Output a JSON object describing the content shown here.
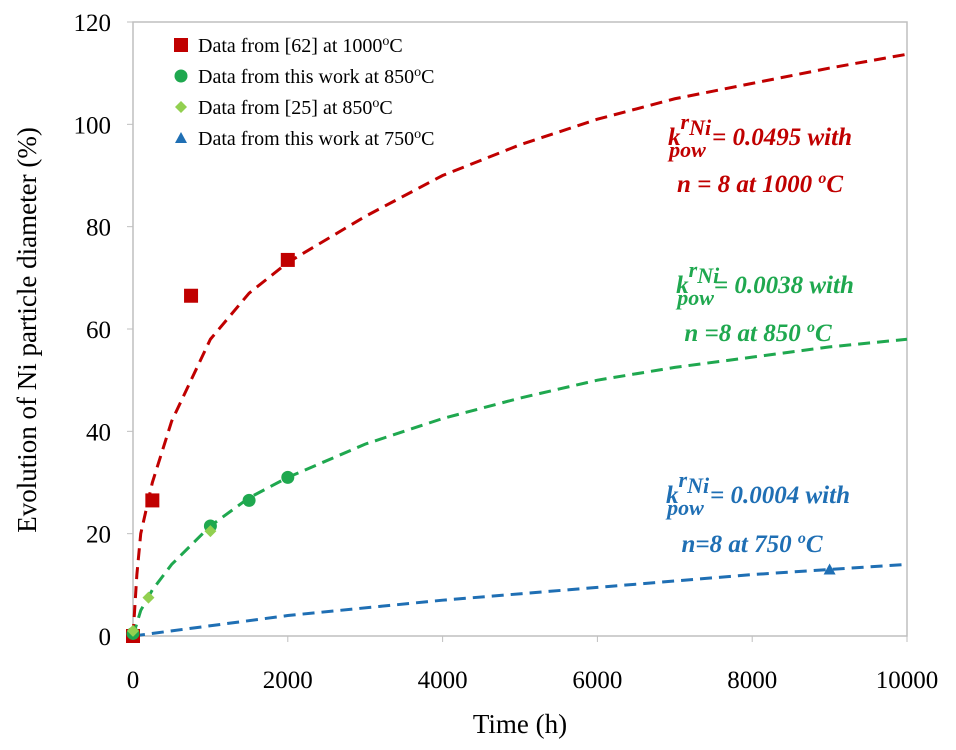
{
  "chart_data": {
    "type": "scatter",
    "x_label": "Time (h)",
    "y_label": "Evolution of Ni particle diameter  (%)",
    "xlim": [
      0,
      10000
    ],
    "xticks": [
      0,
      2000,
      4000,
      6000,
      8000,
      10000
    ],
    "ylim": [
      0,
      120
    ],
    "yticks": [
      0,
      20,
      40,
      60,
      80,
      100,
      120
    ],
    "grid": false,
    "legend": "upper left",
    "series": [
      {
        "name": "Data from [62] at 1000",
        "name_sup": "o",
        "name_end": "C",
        "marker": "square",
        "color": "#c00000",
        "x": [
          0,
          250,
          750,
          2000
        ],
        "values": [
          0,
          26.5,
          66.5,
          73.5
        ]
      },
      {
        "name": "Data from this work at 850",
        "name_sup": "o",
        "name_end": "C",
        "marker": "circle",
        "color": "#1fa84f",
        "x": [
          0,
          1000,
          1500,
          2000
        ],
        "values": [
          0.5,
          21.5,
          26.5,
          31
        ]
      },
      {
        "name": "Data from [25] at 850",
        "name_sup": "o",
        "name_end": "C",
        "marker": "diamond",
        "color": "#92d050",
        "x": [
          0,
          200,
          1000
        ],
        "values": [
          1,
          7.5,
          20.5
        ]
      },
      {
        "name": "Data from this work at 750",
        "name_sup": "o",
        "name_end": "C",
        "marker": "triangle",
        "color": "#1f6fb4",
        "x": [
          9000
        ],
        "values": [
          13
        ]
      },
      {
        "style": "dashed",
        "color": "#c00000",
        "x": [
          0,
          50,
          100,
          250,
          500,
          1000,
          1500,
          2000,
          3000,
          4000,
          5000,
          6000,
          7000,
          8000,
          9000,
          10000
        ],
        "values": [
          0,
          12,
          20,
          30,
          42,
          58,
          67,
          73,
          82,
          90,
          96,
          101,
          105,
          108,
          111,
          113.7
        ]
      },
      {
        "style": "dashed",
        "color": "#1fa84f",
        "x": [
          0,
          100,
          250,
          500,
          1000,
          1500,
          2000,
          3000,
          4000,
          5000,
          6000,
          7000,
          8000,
          9000,
          10000
        ],
        "values": [
          0,
          5,
          9,
          14,
          21.5,
          27,
          31,
          37.5,
          42.5,
          46.5,
          50,
          52.5,
          54.5,
          56.5,
          58
        ]
      },
      {
        "style": "dashed",
        "color": "#1f6fb4",
        "x": [
          0,
          2000,
          4000,
          6000,
          8000,
          10000
        ],
        "values": [
          0,
          4,
          7,
          9.5,
          12,
          14
        ]
      }
    ],
    "annotations": [
      {
        "color": "#c00000",
        "symbol": "k",
        "sup": "r",
        "sup_sub": "Ni",
        "sub": "pow",
        "text": " = 0.0495 with",
        "line2": "n = 8 at 1000 ",
        "line2_sup": "o",
        "line2_end": "C"
      },
      {
        "color": "#1fa84f",
        "symbol": "k",
        "sup": "r",
        "sup_sub": "Ni",
        "sub": "pow",
        "text": "= 0.0038 with",
        "line2": "n =8 at 850 ",
        "line2_sup": "o",
        "line2_end": "C"
      },
      {
        "color": "#1f6fb4",
        "symbol": "k",
        "sup": "r",
        "sup_sub": "Ni",
        "sub": "pow",
        "text": " = 0.0004 with",
        "line2": "n=8 at 750 ",
        "line2_sup": "o",
        "line2_end": "C"
      }
    ]
  }
}
